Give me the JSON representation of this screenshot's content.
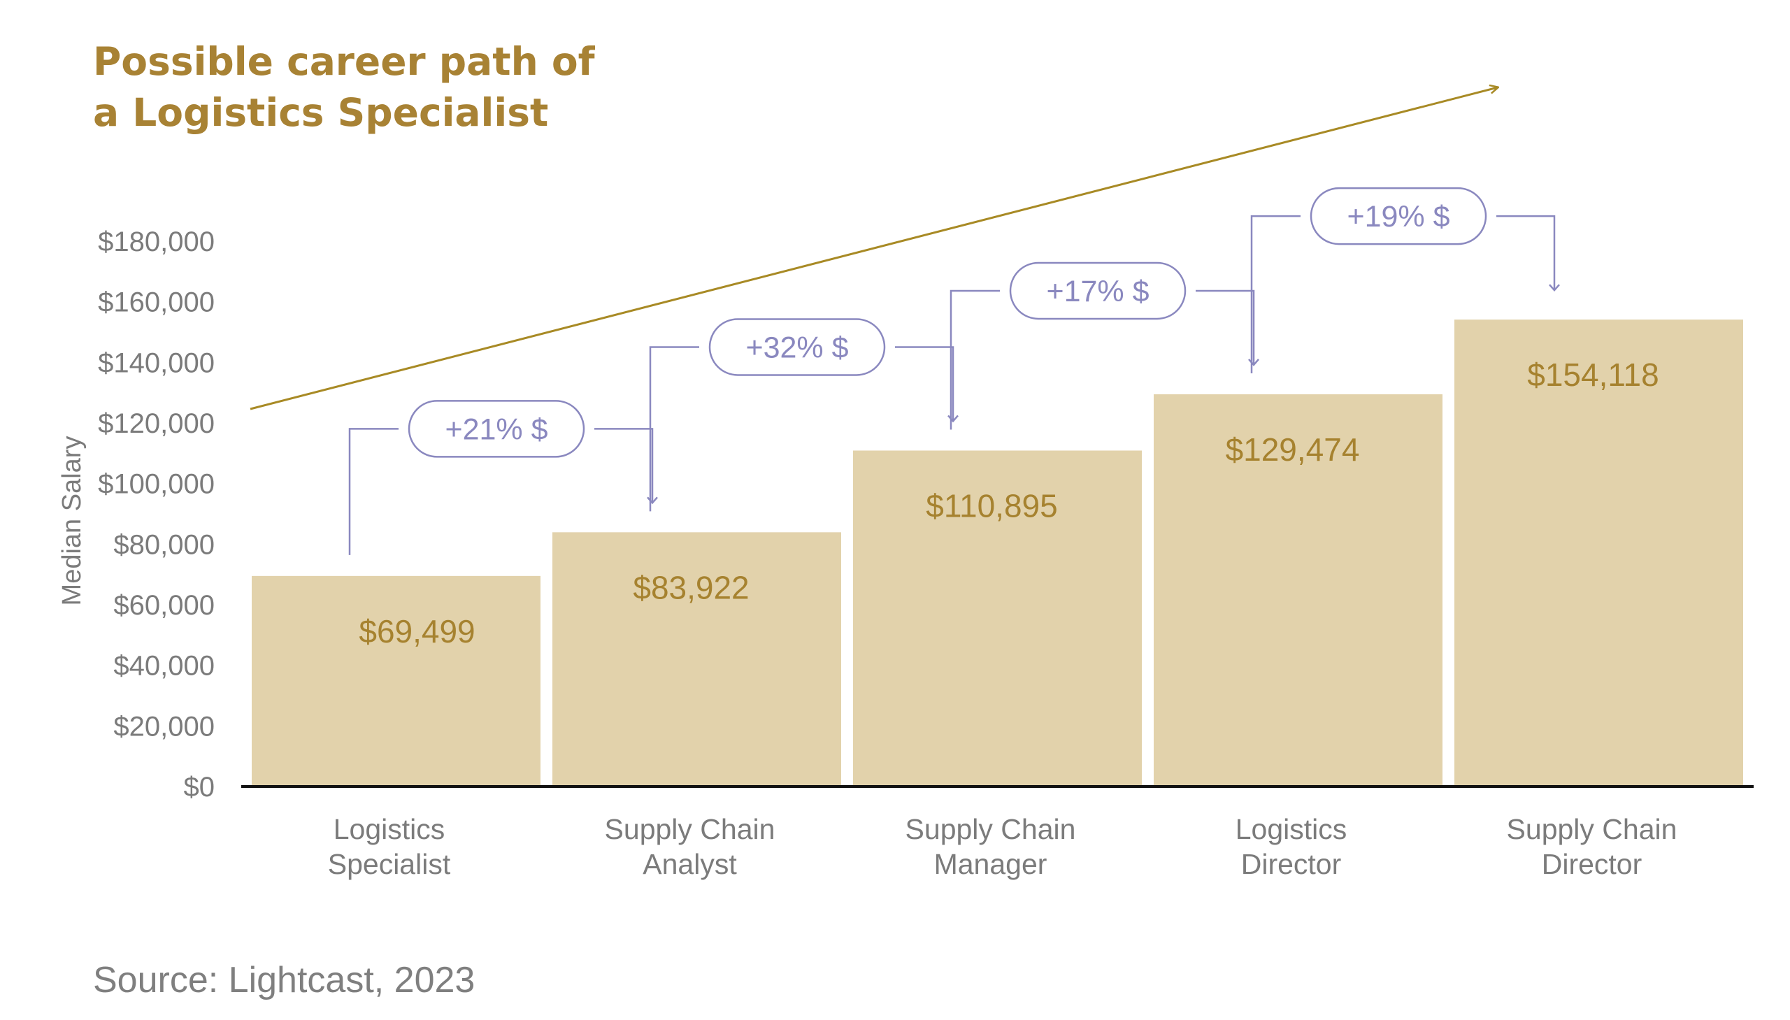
{
  "chart_data": {
    "type": "bar",
    "title": [
      "Possible career path of",
      "a Logistics Specialist"
    ],
    "ylabel": "Median Salary",
    "xlabel": "",
    "ylim": [
      0,
      180000
    ],
    "y_ticks": [
      0,
      20000,
      40000,
      60000,
      80000,
      100000,
      120000,
      140000,
      160000,
      180000
    ],
    "y_tick_labels": [
      "$0",
      "$20,000",
      "$40,000",
      "$60,000",
      "$80,000",
      "$100,000",
      "$120,000",
      "$140,000",
      "$160,000",
      "$180,000"
    ],
    "categories": [
      [
        "Logistics",
        "Specialist"
      ],
      [
        "Supply Chain",
        "Analyst"
      ],
      [
        "Supply Chain",
        "Manager"
      ],
      [
        "Logistics",
        "Director"
      ],
      [
        "Supply Chain",
        "Director"
      ]
    ],
    "values": [
      69499,
      83922,
      110895,
      129474,
      154118
    ],
    "value_labels": [
      "$69,499",
      "$83,922",
      "$110,895",
      "$129,474",
      "$154,118"
    ],
    "increases": [
      "+21% $",
      "+32% $",
      "+17% $",
      "+19% $"
    ],
    "trend_arrow": true,
    "grid": false,
    "colors": {
      "bar": "#e2d2ab",
      "value_text": "#a6822f",
      "title": "#a88234",
      "trend": "#a88a25",
      "annotation": "#8a88bf",
      "axis": "#111111",
      "tick_text": "#7b7b7b"
    }
  },
  "source": "Source: Lightcast, 2023"
}
